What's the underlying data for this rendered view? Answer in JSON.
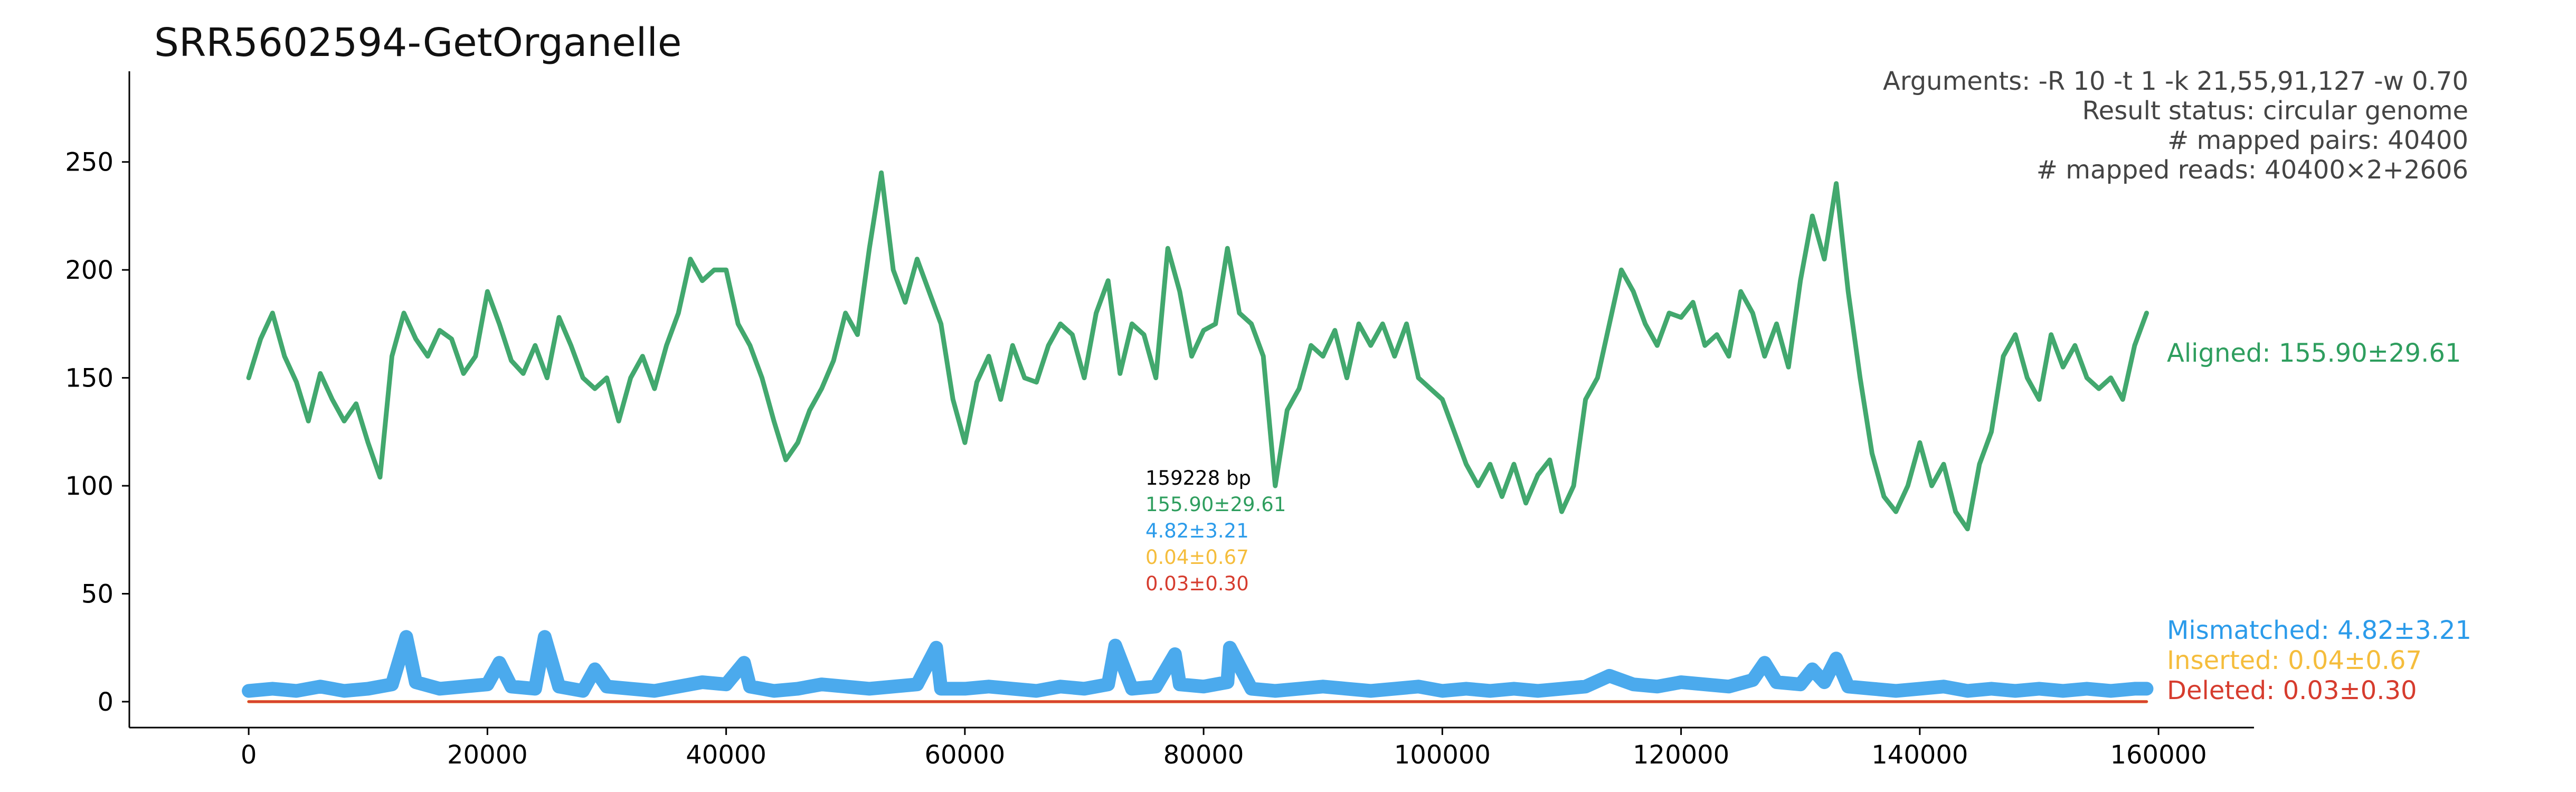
{
  "chart_data": {
    "type": "scatter",
    "title": "SRR5602594-GetOrganelle",
    "xlabel": "",
    "ylabel": "",
    "xlim": [
      -10000,
      168000
    ],
    "ylim": [
      -12,
      292
    ],
    "x_ticks": [
      "0",
      "20000",
      "40000",
      "60000",
      "80000",
      "100000",
      "120000",
      "140000",
      "160000"
    ],
    "y_ticks": [
      "0",
      "50",
      "100",
      "150",
      "200",
      "250"
    ],
    "x_tick_values": [
      0,
      20000,
      40000,
      60000,
      80000,
      100000,
      120000,
      140000,
      160000
    ],
    "y_tick_values": [
      0,
      50,
      100,
      150,
      200,
      250
    ],
    "grid": false,
    "info_lines": [
      "Arguments: -R 10 -t 1 -k 21,55,91,127 -w 0.70",
      "Result status: circular genome",
      "# mapped pairs: 40400",
      "# mapped reads: 40400×2+2606"
    ],
    "center_summary": {
      "length": "159228 bp",
      "aligned": "155.90±29.61",
      "mismatched": "4.82±3.21",
      "inserted": "0.04±0.67",
      "deleted": "0.03±0.30"
    },
    "series": [
      {
        "name": "Aligned",
        "label": "Aligned: 155.90±29.61",
        "color": "#2e9e5e",
        "x": [
          0,
          1000,
          2000,
          3000,
          4000,
          5000,
          6000,
          7000,
          8000,
          9000,
          10000,
          11000,
          12000,
          13000,
          14000,
          15000,
          16000,
          17000,
          18000,
          19000,
          20000,
          21000,
          22000,
          23000,
          24000,
          25000,
          26000,
          27000,
          28000,
          29000,
          30000,
          31000,
          32000,
          33000,
          34000,
          35000,
          36000,
          37000,
          38000,
          39000,
          40000,
          41000,
          42000,
          43000,
          44000,
          45000,
          46000,
          47000,
          48000,
          49000,
          50000,
          51000,
          52000,
          53000,
          54000,
          55000,
          56000,
          57000,
          58000,
          59000,
          60000,
          61000,
          62000,
          63000,
          64000,
          65000,
          66000,
          67000,
          68000,
          69000,
          70000,
          71000,
          72000,
          73000,
          74000,
          75000,
          76000,
          77000,
          78000,
          79000,
          80000,
          81000,
          82000,
          83000,
          84000,
          85000,
          86000,
          87000,
          88000,
          89000,
          90000,
          91000,
          92000,
          93000,
          94000,
          95000,
          96000,
          97000,
          98000,
          99000,
          100000,
          101000,
          102000,
          103000,
          104000,
          105000,
          106000,
          107000,
          108000,
          109000,
          110000,
          111000,
          112000,
          113000,
          114000,
          115000,
          116000,
          117000,
          118000,
          119000,
          120000,
          121000,
          122000,
          123000,
          124000,
          125000,
          126000,
          127000,
          128000,
          129000,
          130000,
          131000,
          132000,
          133000,
          134000,
          135000,
          136000,
          137000,
          138000,
          139000,
          140000,
          141000,
          142000,
          143000,
          144000,
          145000,
          146000,
          147000,
          148000,
          149000,
          150000,
          151000,
          152000,
          153000,
          154000,
          155000,
          156000,
          157000,
          158000,
          159000
        ],
        "y": [
          150,
          168,
          180,
          160,
          148,
          130,
          152,
          140,
          130,
          138,
          120,
          104,
          160,
          180,
          168,
          160,
          172,
          168,
          152,
          160,
          190,
          175,
          158,
          152,
          165,
          150,
          178,
          165,
          150,
          145,
          150,
          130,
          150,
          160,
          145,
          165,
          180,
          205,
          195,
          200,
          200,
          175,
          165,
          150,
          130,
          112,
          120,
          135,
          145,
          158,
          180,
          170,
          210,
          245,
          200,
          185,
          205,
          190,
          175,
          140,
          120,
          148,
          160,
          140,
          165,
          150,
          148,
          165,
          175,
          170,
          150,
          180,
          195,
          152,
          175,
          170,
          150,
          210,
          190,
          160,
          172,
          175,
          210,
          180,
          175,
          160,
          100,
          135,
          145,
          165,
          160,
          172,
          150,
          175,
          165,
          175,
          160,
          175,
          150,
          145,
          140,
          125,
          110,
          100,
          110,
          95,
          110,
          92,
          105,
          112,
          88,
          100,
          140,
          150,
          175,
          200,
          190,
          175,
          165,
          180,
          178,
          185,
          165,
          170,
          160,
          190,
          180,
          160,
          175,
          155,
          195,
          225,
          205,
          240,
          190,
          150,
          115,
          95,
          88,
          100,
          120,
          100,
          110,
          88,
          80,
          110,
          125,
          160,
          170,
          150,
          140,
          170,
          155,
          165,
          150,
          145,
          150,
          140,
          165,
          180
        ]
      },
      {
        "name": "Mismatched",
        "label": "Mismatched: 4.82±3.21",
        "color": "#2b9bea",
        "x": [
          0,
          2000,
          4000,
          6000,
          8000,
          10000,
          12000,
          13200,
          14000,
          16000,
          18000,
          20000,
          21000,
          22000,
          24000,
          24800,
          26000,
          28000,
          29000,
          30000,
          32000,
          34000,
          36000,
          38000,
          40000,
          41500,
          42000,
          44000,
          46000,
          48000,
          50000,
          52000,
          54000,
          56000,
          57600,
          58000,
          60000,
          62000,
          64000,
          66000,
          68000,
          70000,
          72000,
          72600,
          74000,
          76000,
          77600,
          78000,
          80000,
          82000,
          82200,
          84000,
          86000,
          88000,
          90000,
          92000,
          94000,
          96000,
          98000,
          100000,
          102000,
          104000,
          106000,
          108000,
          110000,
          112000,
          114000,
          116000,
          118000,
          120000,
          122000,
          124000,
          126000,
          127000,
          128000,
          130000,
          131000,
          132000,
          133000,
          134000,
          136000,
          138000,
          140000,
          142000,
          144000,
          146000,
          148000,
          150000,
          152000,
          154000,
          156000,
          158000,
          159000
        ],
        "y": [
          5,
          6,
          5,
          7,
          5,
          6,
          8,
          30,
          9,
          6,
          7,
          8,
          18,
          7,
          6,
          30,
          7,
          5,
          15,
          7,
          6,
          5,
          7,
          9,
          8,
          18,
          7,
          5,
          6,
          8,
          7,
          6,
          7,
          8,
          25,
          6,
          6,
          7,
          6,
          5,
          7,
          6,
          8,
          26,
          6,
          7,
          22,
          8,
          7,
          9,
          25,
          6,
          5,
          6,
          7,
          6,
          5,
          6,
          7,
          5,
          6,
          5,
          6,
          5,
          6,
          7,
          12,
          8,
          7,
          9,
          8,
          7,
          10,
          18,
          9,
          8,
          15,
          9,
          20,
          7,
          6,
          5,
          6,
          7,
          5,
          6,
          5,
          6,
          5,
          6,
          5,
          6,
          6
        ]
      },
      {
        "name": "Inserted",
        "label": "Inserted: 0.04±0.67",
        "color": "#f5bd3c",
        "x": [
          0,
          20000,
          40000,
          60000,
          80000,
          100000,
          120000,
          140000,
          159000
        ],
        "y": [
          0,
          0,
          0,
          0,
          0,
          0,
          0,
          0,
          0
        ]
      },
      {
        "name": "Deleted",
        "label": "Deleted: 0.03±0.30",
        "color": "#d63c2e",
        "x": [
          0,
          20000,
          40000,
          60000,
          80000,
          100000,
          120000,
          140000,
          159000
        ],
        "y": [
          0,
          0,
          0,
          0,
          0,
          0,
          0,
          0,
          0
        ]
      }
    ]
  }
}
